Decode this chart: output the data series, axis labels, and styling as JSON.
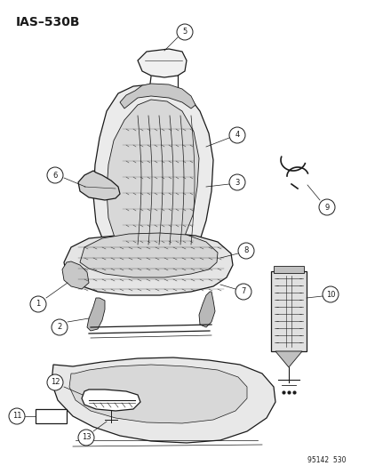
{
  "title": "IAS–530B",
  "footer": "95142  530",
  "bg_color": "#ffffff",
  "line_color": "#1a1a1a",
  "font_size_title": 10,
  "font_size_labels": 6.5,
  "font_size_footer": 5.5,
  "label_circle_r": 0.018
}
